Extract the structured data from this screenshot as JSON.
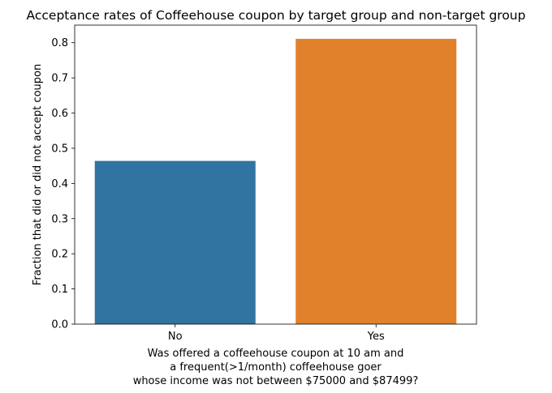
{
  "chart_data": {
    "type": "bar",
    "title": "Acceptance rates of Coffeehouse coupon by target group and non-target group",
    "xlabel": [
      "Was offered a coffeehouse coupon at 10 am and",
      "a frequent(>1/month) coffeehouse goer",
      "whose income was not between $75000 and $87499?"
    ],
    "ylabel": "Fraction that did or did not accept coupon",
    "categories": [
      "No",
      "Yes"
    ],
    "values": [
      0.464,
      0.811
    ],
    "colors": [
      "#3274a1",
      "#e1812c"
    ],
    "ylim": [
      0,
      0.85
    ],
    "yticks": [
      0.0,
      0.1,
      0.2,
      0.3,
      0.4,
      0.5,
      0.6,
      0.7,
      0.8
    ],
    "ytick_labels": [
      "0.0",
      "0.1",
      "0.2",
      "0.3",
      "0.4",
      "0.5",
      "0.6",
      "0.7",
      "0.8"
    ],
    "grid": false,
    "legend": "none"
  }
}
